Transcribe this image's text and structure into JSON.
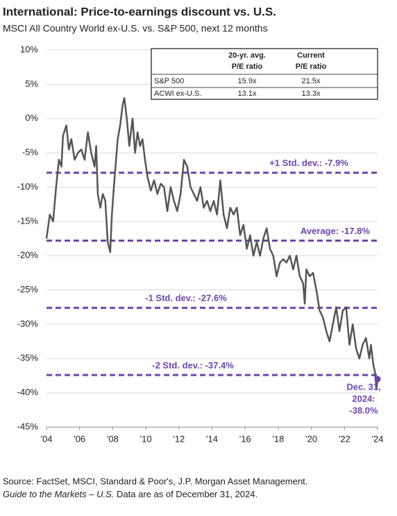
{
  "chart_data": {
    "type": "line",
    "title": "International: Price-to-earnings discount vs. U.S.",
    "subtitle": "MSCI All Country World ex-U.S. vs. S&P 500, next 12 months",
    "xlim": [
      2004,
      2024
    ],
    "xticks": [
      {
        "value": 2004,
        "label": "'04"
      },
      {
        "value": 2006,
        "label": "'06"
      },
      {
        "value": 2008,
        "label": "'08"
      },
      {
        "value": 2010,
        "label": "'10"
      },
      {
        "value": 2012,
        "label": "'12"
      },
      {
        "value": 2014,
        "label": "'14"
      },
      {
        "value": 2016,
        "label": "'16"
      },
      {
        "value": 2018,
        "label": "'18"
      },
      {
        "value": 2020,
        "label": "'20"
      },
      {
        "value": 2022,
        "label": "'22"
      },
      {
        "value": 2024,
        "label": "'24"
      }
    ],
    "ylim": [
      -45,
      10
    ],
    "yticks": [
      {
        "value": 10,
        "label": "10%"
      },
      {
        "value": 5,
        "label": "5%"
      },
      {
        "value": 0,
        "label": "0%"
      },
      {
        "value": -5,
        "label": "-5%"
      },
      {
        "value": -10,
        "label": "-10%"
      },
      {
        "value": -15,
        "label": "-15%"
      },
      {
        "value": -20,
        "label": "-20%"
      },
      {
        "value": -25,
        "label": "-25%"
      },
      {
        "value": -30,
        "label": "-30%"
      },
      {
        "value": -35,
        "label": "-35%"
      },
      {
        "value": -40,
        "label": "-40%"
      },
      {
        "value": -45,
        "label": "-45%"
      }
    ],
    "grid": true,
    "series": [
      {
        "color": "#555555",
        "x": [
          2004.0,
          2004.2,
          2004.4,
          2004.6,
          2004.75,
          2004.9,
          2005.0,
          2005.2,
          2005.35,
          2005.5,
          2005.7,
          2005.9,
          2006.1,
          2006.3,
          2006.5,
          2006.7,
          2006.9,
          2007.0,
          2007.1,
          2007.25,
          2007.4,
          2007.55,
          2007.7,
          2007.85,
          2007.95,
          2008.1,
          2008.3,
          2008.45,
          2008.6,
          2008.7,
          2008.85,
          2009.0,
          2009.2,
          2009.35,
          2009.5,
          2009.65,
          2009.8,
          2009.95,
          2010.1,
          2010.3,
          2010.5,
          2010.7,
          2010.9,
          2011.1,
          2011.3,
          2011.5,
          2011.7,
          2011.9,
          2012.1,
          2012.3,
          2012.5,
          2012.7,
          2012.9,
          2013.1,
          2013.3,
          2013.5,
          2013.7,
          2013.9,
          2014.1,
          2014.3,
          2014.5,
          2014.7,
          2014.9,
          2015.1,
          2015.3,
          2015.5,
          2015.7,
          2015.9,
          2016.1,
          2016.3,
          2016.5,
          2016.7,
          2016.9,
          2017.1,
          2017.3,
          2017.5,
          2017.7,
          2017.9,
          2018.1,
          2018.3,
          2018.5,
          2018.7,
          2018.9,
          2019.1,
          2019.3,
          2019.5,
          2019.6,
          2019.7,
          2019.9,
          2020.1,
          2020.3,
          2020.5,
          2020.7,
          2020.9,
          2021.1,
          2021.3,
          2021.5,
          2021.7,
          2021.9,
          2022.1,
          2022.3,
          2022.5,
          2022.7,
          2022.9,
          2023.1,
          2023.3,
          2023.5,
          2023.6,
          2023.75,
          2023.85,
          2023.93,
          2024.0
        ],
        "values": [
          -17.5,
          -14,
          -15,
          -9.5,
          -6,
          -7,
          -2.5,
          -1,
          -4.5,
          -3,
          -6,
          -5,
          -4.5,
          -6,
          -2,
          -5,
          -7,
          -4,
          -11,
          -13,
          -11,
          -12,
          -18,
          -19.5,
          -14,
          -9,
          -3,
          -1,
          2,
          3,
          0,
          -4,
          0,
          -5,
          -2,
          -4,
          -3,
          -6,
          -8.5,
          -10.5,
          -9,
          -11,
          -9.5,
          -10,
          -13.5,
          -10,
          -12,
          -13.5,
          -11,
          -6,
          -7,
          -10,
          -11,
          -12,
          -10,
          -13,
          -12,
          -13.5,
          -12,
          -14,
          -9,
          -14,
          -16,
          -13,
          -14,
          -13,
          -17,
          -15.5,
          -19,
          -17,
          -20,
          -18,
          -20,
          -17.5,
          -16,
          -19,
          -20,
          -23,
          -21,
          -20.5,
          -21,
          -20,
          -22,
          -20,
          -23,
          -24,
          -27,
          -22,
          -23,
          -22.5,
          -25,
          -28,
          -29,
          -31,
          -32.5,
          -30,
          -27.5,
          -31,
          -28,
          -27.5,
          -33,
          -30,
          -33.5,
          -35,
          -33,
          -32,
          -35,
          -33,
          -36,
          -37,
          -39.5,
          -38
        ]
      }
    ],
    "reference_lines": [
      {
        "label": "+1 Std. dev.: -7.9%",
        "value": -7.9
      },
      {
        "label": "Average: -17.8%",
        "value": -17.8
      },
      {
        "label": "-1 Std. dev.: -27.6%",
        "value": -27.6
      },
      {
        "label": "-2 Std. dev.: -37.4%",
        "value": -37.4
      }
    ],
    "reference_color": "#6b45b0",
    "end_label": [
      "Dec. 31,",
      "2024:",
      "-38.0%"
    ],
    "table": {
      "header": [
        [
          "20-yr. avg.",
          "P/E ratio"
        ],
        [
          "Current",
          "P/E ratio"
        ]
      ],
      "rows": [
        [
          "S&P 500",
          "15.9x",
          "21.5x"
        ],
        [
          "ACWI ex-U.S.",
          "13.1x",
          "13.3x"
        ]
      ]
    },
    "footnote": [
      "Source: FactSet, MSCI, Standard & Poor's, J.P. Morgan Asset Management.",
      "Guide to the Markets – U.S.",
      " Data are as of December 31, 2024."
    ]
  }
}
